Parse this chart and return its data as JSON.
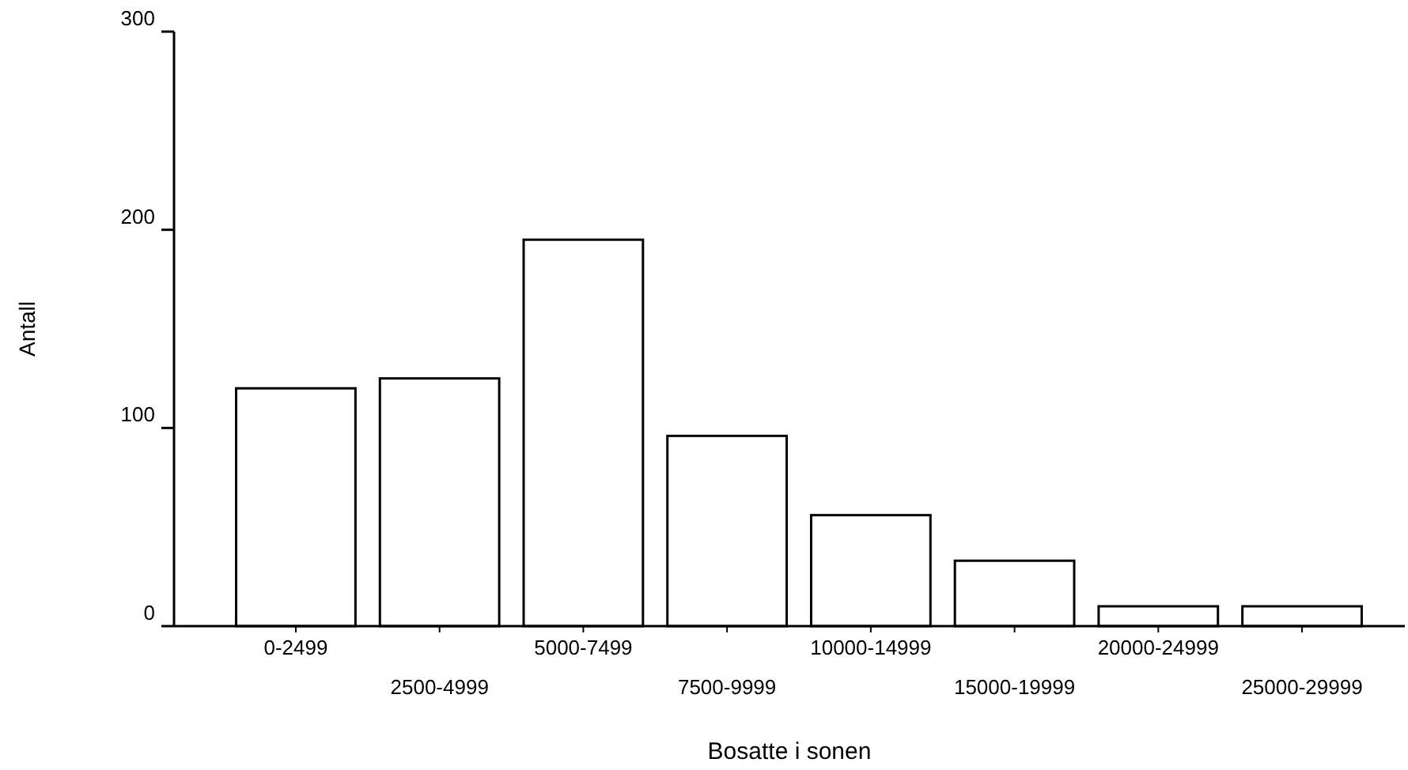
{
  "chart_data": {
    "type": "bar",
    "xlabel": "Bosatte i sonen",
    "ylabel": "Antall",
    "categories": [
      "0-2499",
      "2500-4999",
      "5000-7499",
      "7500-9999",
      "10000-14999",
      "15000-19999",
      "20000-24999",
      "25000-29999"
    ],
    "values": [
      120,
      125,
      195,
      96,
      56,
      33,
      10,
      10
    ],
    "color": "#ffffff",
    "ylim": [
      0,
      300
    ],
    "yticks": [
      0,
      100,
      200,
      300
    ],
    "grid": false
  }
}
